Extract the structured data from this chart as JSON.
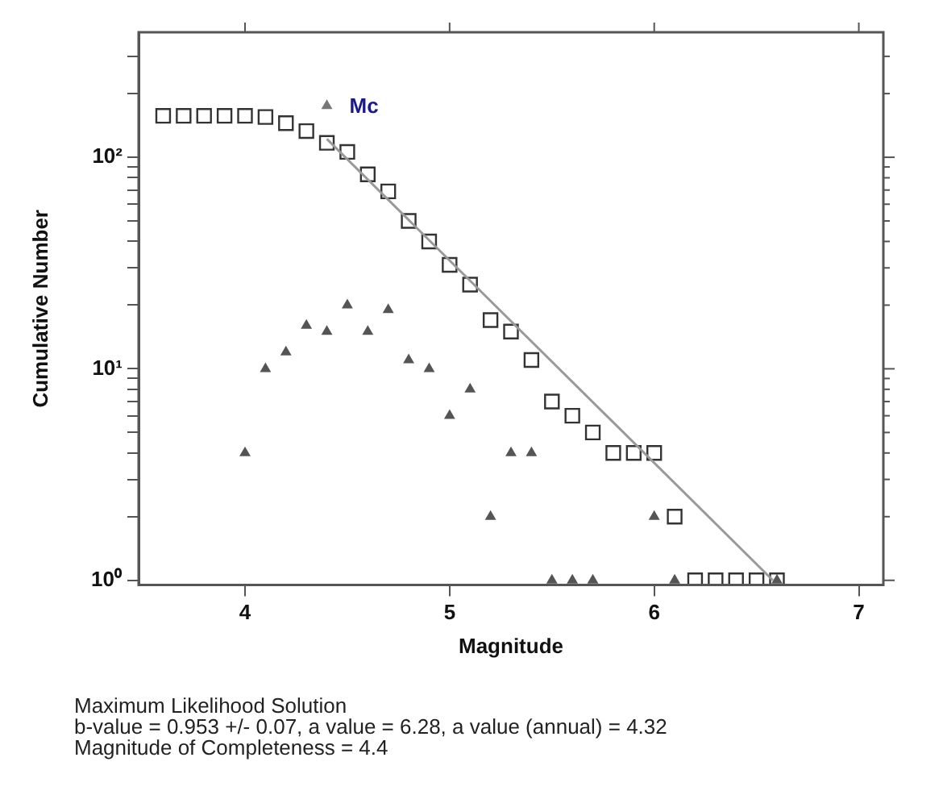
{
  "chart_data": {
    "type": "scatter",
    "xlabel": "Magnitude",
    "ylabel": "Cumulative Number",
    "log": "y",
    "grid": false,
    "xlim": [
      3.48,
      7.12
    ],
    "xticks": [
      4,
      5,
      6,
      7
    ],
    "ylim": [
      0.95,
      390
    ],
    "yticks": [
      {
        "value": 1,
        "label": "10⁰"
      },
      {
        "value": 2,
        "label": null
      },
      {
        "value": 3,
        "label": null
      },
      {
        "value": 4,
        "label": null
      },
      {
        "value": 5,
        "label": null
      },
      {
        "value": 6,
        "label": null
      },
      {
        "value": 7,
        "label": null
      },
      {
        "value": 8,
        "label": null
      },
      {
        "value": 9,
        "label": null
      },
      {
        "value": 10,
        "label": "10¹"
      },
      {
        "value": 20,
        "label": null
      },
      {
        "value": 30,
        "label": null
      },
      {
        "value": 40,
        "label": null
      },
      {
        "value": 50,
        "label": null
      },
      {
        "value": 60,
        "label": null
      },
      {
        "value": 70,
        "label": null
      },
      {
        "value": 80,
        "label": null
      },
      {
        "value": 90,
        "label": null
      },
      {
        "value": 100,
        "label": "10²"
      },
      {
        "value": 200,
        "label": null
      },
      {
        "value": 300,
        "label": null
      }
    ],
    "series": [
      {
        "type": "line",
        "color": "#999999",
        "marker": "none",
        "x": [
          4.4,
          6.58
        ],
        "values": [
          122,
          1
        ]
      },
      {
        "type": "scatter",
        "color": "#333333",
        "marker": "square",
        "x": [
          3.6,
          3.7,
          3.8,
          3.9,
          4.0,
          4.1,
          4.2,
          4.3,
          4.4,
          4.5,
          4.6,
          4.7,
          4.8,
          4.9,
          5.0,
          5.1,
          5.2,
          5.3,
          5.4,
          5.5,
          5.6,
          5.7,
          5.8,
          5.9,
          6.0,
          6.1,
          6.2,
          6.3,
          6.4,
          6.5,
          6.6
        ],
        "values": [
          157,
          157,
          157,
          157,
          157,
          155,
          145,
          133,
          117,
          106,
          83,
          69,
          50,
          40,
          31,
          25,
          17,
          15,
          11,
          7,
          6,
          5,
          4,
          4,
          4,
          2,
          1,
          1,
          1,
          1,
          1
        ]
      },
      {
        "type": "scatter",
        "color": "#555555",
        "marker": "triangle",
        "x": [
          4.0,
          4.1,
          4.2,
          4.3,
          4.4,
          4.5,
          4.6,
          4.7,
          4.8,
          4.9,
          5.0,
          5.1,
          5.2,
          5.3,
          5.4,
          5.5,
          5.6,
          5.7,
          6.0,
          6.1,
          6.6
        ],
        "values": [
          4,
          10,
          12,
          16,
          15,
          20,
          15,
          19,
          11,
          10,
          6,
          8,
          2,
          4,
          4,
          1,
          1,
          1,
          2,
          1,
          1
        ]
      },
      {
        "type": "scatter",
        "name": "Mc",
        "color": "#777777",
        "marker": "triangle",
        "x": [
          4.4
        ],
        "values": [
          175
        ]
      }
    ],
    "annotations": [
      "Maximum Likelihood Solution",
      "b-value = 0.953 +/- 0.07,  a value = 6.28,  a value (annual) = 4.32",
      "Magnitude of Completeness = 4.4"
    ]
  }
}
